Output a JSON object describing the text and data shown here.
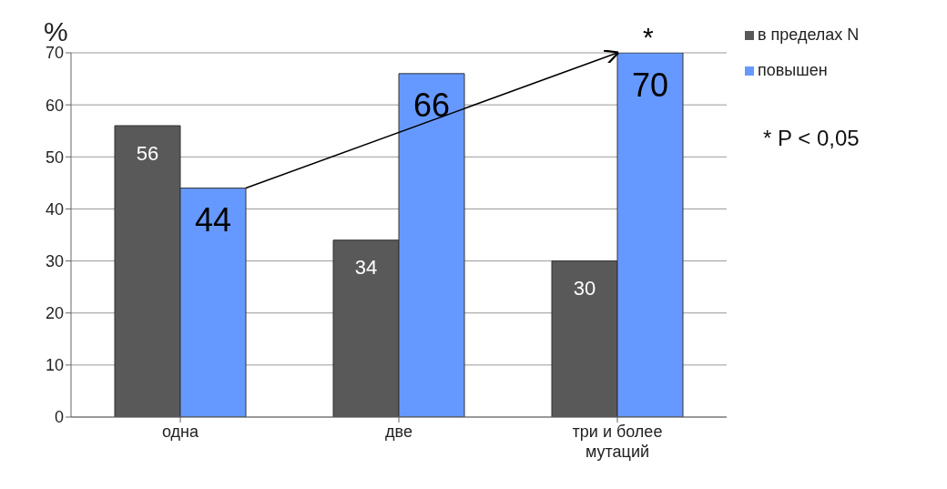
{
  "chart_data": {
    "type": "bar",
    "ylabel": "%",
    "categories": [
      "одна",
      "две",
      "три и более мутаций"
    ],
    "series": [
      {
        "name": "в пределах N",
        "color": "#595959",
        "values": [
          56,
          34,
          30
        ]
      },
      {
        "name": "повышен",
        "color": "#6699ff",
        "values": [
          44,
          66,
          70
        ]
      }
    ],
    "ylim": [
      0,
      70
    ],
    "yticks": [
      0,
      10,
      20,
      30,
      40,
      50,
      60,
      70
    ],
    "grid": "y",
    "legend": "top right",
    "data_labels": true,
    "annotations": [
      {
        "text": "*",
        "x": "три и более мутаций",
        "y": 70
      },
      "* P < 0,05"
    ]
  }
}
